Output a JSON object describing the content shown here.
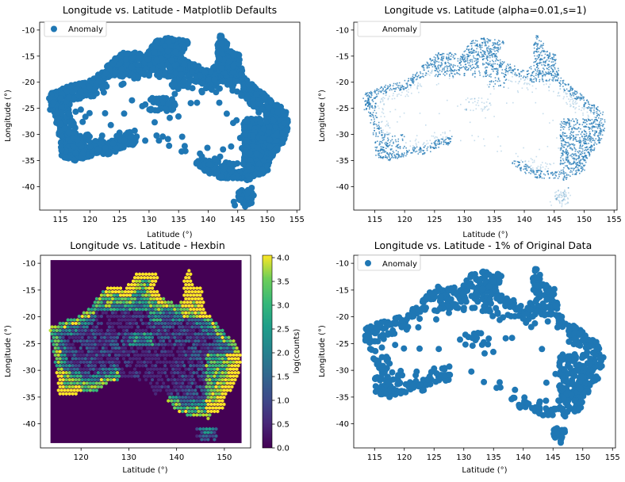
{
  "colors": {
    "point": "#1f77b4",
    "hex_low": "#440154",
    "hex_high": "#fde725",
    "frame": "#000000"
  },
  "chart_data": [
    {
      "type": "scatter",
      "title": "Longitude vs. Latitude - Matplotlib Defaults",
      "xlabel": "Latitude (°)",
      "ylabel": "Longitude (°)",
      "xlim": [
        111.5,
        155.5
      ],
      "ylim": [
        -44.5,
        -8.5
      ],
      "xticks": [
        115,
        120,
        125,
        130,
        135,
        140,
        145,
        150,
        155
      ],
      "yticks": [
        -10,
        -15,
        -20,
        -25,
        -30,
        -35,
        -40
      ],
      "legend": {
        "label": "Anomaly",
        "position": "top-left"
      },
      "marker_size": "default",
      "alpha": 1.0,
      "fraction": 1.0
    },
    {
      "type": "scatter",
      "title": "Longitude vs. Latitude (alpha=0.01,s=1)",
      "xlabel": "Latitude (°)",
      "ylabel": "Longitude (°)",
      "xlim": [
        111.5,
        155.5
      ],
      "ylim": [
        -44.5,
        -8.5
      ],
      "xticks": [
        115,
        120,
        125,
        130,
        135,
        140,
        145,
        150,
        155
      ],
      "yticks": [
        -10,
        -15,
        -20,
        -25,
        -30,
        -35,
        -40
      ],
      "legend": {
        "label": "Anomaly",
        "position": "top-left"
      },
      "marker_size": 1,
      "alpha": 0.01,
      "fraction": 1.0
    },
    {
      "type": "heatmap",
      "title": "Longitude vs. Latitude - Hexbin",
      "xlabel": "Latitude (°)",
      "ylabel": "Longitude (°)",
      "xlim": [
        111.5,
        155.5
      ],
      "ylim": [
        -44.5,
        -8.5
      ],
      "xticks": [
        120,
        130,
        140,
        150
      ],
      "yticks": [
        -10,
        -15,
        -20,
        -25,
        -30,
        -35,
        -40
      ],
      "colorbar": {
        "label": "log(counts)",
        "range": [
          0.0,
          4.05
        ],
        "ticks": [
          "0.0",
          "0.5",
          "1.0",
          "1.5",
          "2.0",
          "2.5",
          "3.0",
          "3.5",
          "4.0"
        ],
        "colormap": "viridis"
      }
    },
    {
      "type": "scatter",
      "title": "Longitude vs. Latitude - 1% of Original Data",
      "xlabel": "Latitude (°)",
      "ylabel": "Longitude (°)",
      "xlim": [
        111.5,
        155.5
      ],
      "ylim": [
        -44.5,
        -8.5
      ],
      "xticks": [
        115,
        120,
        125,
        130,
        135,
        140,
        145,
        150,
        155
      ],
      "yticks": [
        -10,
        -15,
        -20,
        -25,
        -30,
        -35,
        -40
      ],
      "legend": {
        "label": "Anomaly",
        "position": "top-left"
      },
      "marker_size": "default",
      "alpha": 1.0,
      "fraction": 0.01
    }
  ]
}
